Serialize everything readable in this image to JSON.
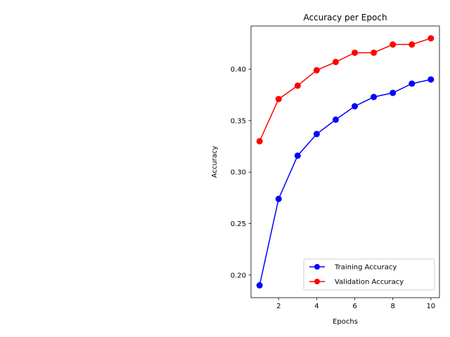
{
  "chart_data": {
    "type": "line",
    "title": "Accuracy per Epoch",
    "xlabel": "Epochs",
    "ylabel": "Accuracy",
    "x": [
      1,
      2,
      3,
      4,
      5,
      6,
      7,
      8,
      9,
      10
    ],
    "xlim": [
      0.55,
      10.45
    ],
    "ylim": [
      0.178,
      0.442
    ],
    "xticks": [
      2,
      4,
      6,
      8,
      10
    ],
    "yticks": [
      0.2,
      0.25,
      0.3,
      0.35,
      0.4
    ],
    "ytick_labels": [
      "0.20",
      "0.25",
      "0.30",
      "0.35",
      "0.40"
    ],
    "grid": false,
    "legend_position": "lower-right",
    "series": [
      {
        "name": "Training Accuracy",
        "color": "#0000ff",
        "marker": "circle",
        "values": [
          0.19,
          0.274,
          0.316,
          0.337,
          0.351,
          0.364,
          0.373,
          0.377,
          0.386,
          0.39
        ]
      },
      {
        "name": "Validation Accuracy",
        "color": "#ff0000",
        "marker": "circle",
        "values": [
          0.33,
          0.371,
          0.384,
          0.399,
          0.407,
          0.416,
          0.416,
          0.424,
          0.424,
          0.43
        ]
      }
    ]
  }
}
